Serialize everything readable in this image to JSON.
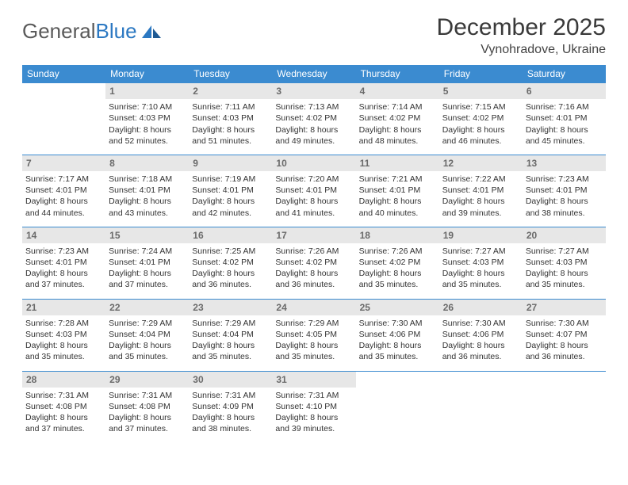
{
  "logo": {
    "textGray": "General",
    "textBlue": "Blue"
  },
  "header": {
    "title": "December 2025",
    "location": "Vynohradove, Ukraine"
  },
  "colors": {
    "headerBlue": "#3b8bd0",
    "dayBg": "#e7e7e7",
    "borderBlue": "#3b8bd0",
    "textGray": "#5a5a5a",
    "logoBlue": "#2b78c2"
  },
  "weekdays": [
    "Sunday",
    "Monday",
    "Tuesday",
    "Wednesday",
    "Thursday",
    "Friday",
    "Saturday"
  ],
  "startOffset": 1,
  "days": [
    {
      "n": "1",
      "sunrise": "Sunrise: 7:10 AM",
      "sunset": "Sunset: 4:03 PM",
      "day1": "Daylight: 8 hours",
      "day2": "and 52 minutes."
    },
    {
      "n": "2",
      "sunrise": "Sunrise: 7:11 AM",
      "sunset": "Sunset: 4:03 PM",
      "day1": "Daylight: 8 hours",
      "day2": "and 51 minutes."
    },
    {
      "n": "3",
      "sunrise": "Sunrise: 7:13 AM",
      "sunset": "Sunset: 4:02 PM",
      "day1": "Daylight: 8 hours",
      "day2": "and 49 minutes."
    },
    {
      "n": "4",
      "sunrise": "Sunrise: 7:14 AM",
      "sunset": "Sunset: 4:02 PM",
      "day1": "Daylight: 8 hours",
      "day2": "and 48 minutes."
    },
    {
      "n": "5",
      "sunrise": "Sunrise: 7:15 AM",
      "sunset": "Sunset: 4:02 PM",
      "day1": "Daylight: 8 hours",
      "day2": "and 46 minutes."
    },
    {
      "n": "6",
      "sunrise": "Sunrise: 7:16 AM",
      "sunset": "Sunset: 4:01 PM",
      "day1": "Daylight: 8 hours",
      "day2": "and 45 minutes."
    },
    {
      "n": "7",
      "sunrise": "Sunrise: 7:17 AM",
      "sunset": "Sunset: 4:01 PM",
      "day1": "Daylight: 8 hours",
      "day2": "and 44 minutes."
    },
    {
      "n": "8",
      "sunrise": "Sunrise: 7:18 AM",
      "sunset": "Sunset: 4:01 PM",
      "day1": "Daylight: 8 hours",
      "day2": "and 43 minutes."
    },
    {
      "n": "9",
      "sunrise": "Sunrise: 7:19 AM",
      "sunset": "Sunset: 4:01 PM",
      "day1": "Daylight: 8 hours",
      "day2": "and 42 minutes."
    },
    {
      "n": "10",
      "sunrise": "Sunrise: 7:20 AM",
      "sunset": "Sunset: 4:01 PM",
      "day1": "Daylight: 8 hours",
      "day2": "and 41 minutes."
    },
    {
      "n": "11",
      "sunrise": "Sunrise: 7:21 AM",
      "sunset": "Sunset: 4:01 PM",
      "day1": "Daylight: 8 hours",
      "day2": "and 40 minutes."
    },
    {
      "n": "12",
      "sunrise": "Sunrise: 7:22 AM",
      "sunset": "Sunset: 4:01 PM",
      "day1": "Daylight: 8 hours",
      "day2": "and 39 minutes."
    },
    {
      "n": "13",
      "sunrise": "Sunrise: 7:23 AM",
      "sunset": "Sunset: 4:01 PM",
      "day1": "Daylight: 8 hours",
      "day2": "and 38 minutes."
    },
    {
      "n": "14",
      "sunrise": "Sunrise: 7:23 AM",
      "sunset": "Sunset: 4:01 PM",
      "day1": "Daylight: 8 hours",
      "day2": "and 37 minutes."
    },
    {
      "n": "15",
      "sunrise": "Sunrise: 7:24 AM",
      "sunset": "Sunset: 4:01 PM",
      "day1": "Daylight: 8 hours",
      "day2": "and 37 minutes."
    },
    {
      "n": "16",
      "sunrise": "Sunrise: 7:25 AM",
      "sunset": "Sunset: 4:02 PM",
      "day1": "Daylight: 8 hours",
      "day2": "and 36 minutes."
    },
    {
      "n": "17",
      "sunrise": "Sunrise: 7:26 AM",
      "sunset": "Sunset: 4:02 PM",
      "day1": "Daylight: 8 hours",
      "day2": "and 36 minutes."
    },
    {
      "n": "18",
      "sunrise": "Sunrise: 7:26 AM",
      "sunset": "Sunset: 4:02 PM",
      "day1": "Daylight: 8 hours",
      "day2": "and 35 minutes."
    },
    {
      "n": "19",
      "sunrise": "Sunrise: 7:27 AM",
      "sunset": "Sunset: 4:03 PM",
      "day1": "Daylight: 8 hours",
      "day2": "and 35 minutes."
    },
    {
      "n": "20",
      "sunrise": "Sunrise: 7:27 AM",
      "sunset": "Sunset: 4:03 PM",
      "day1": "Daylight: 8 hours",
      "day2": "and 35 minutes."
    },
    {
      "n": "21",
      "sunrise": "Sunrise: 7:28 AM",
      "sunset": "Sunset: 4:03 PM",
      "day1": "Daylight: 8 hours",
      "day2": "and 35 minutes."
    },
    {
      "n": "22",
      "sunrise": "Sunrise: 7:29 AM",
      "sunset": "Sunset: 4:04 PM",
      "day1": "Daylight: 8 hours",
      "day2": "and 35 minutes."
    },
    {
      "n": "23",
      "sunrise": "Sunrise: 7:29 AM",
      "sunset": "Sunset: 4:04 PM",
      "day1": "Daylight: 8 hours",
      "day2": "and 35 minutes."
    },
    {
      "n": "24",
      "sunrise": "Sunrise: 7:29 AM",
      "sunset": "Sunset: 4:05 PM",
      "day1": "Daylight: 8 hours",
      "day2": "and 35 minutes."
    },
    {
      "n": "25",
      "sunrise": "Sunrise: 7:30 AM",
      "sunset": "Sunset: 4:06 PM",
      "day1": "Daylight: 8 hours",
      "day2": "and 35 minutes."
    },
    {
      "n": "26",
      "sunrise": "Sunrise: 7:30 AM",
      "sunset": "Sunset: 4:06 PM",
      "day1": "Daylight: 8 hours",
      "day2": "and 36 minutes."
    },
    {
      "n": "27",
      "sunrise": "Sunrise: 7:30 AM",
      "sunset": "Sunset: 4:07 PM",
      "day1": "Daylight: 8 hours",
      "day2": "and 36 minutes."
    },
    {
      "n": "28",
      "sunrise": "Sunrise: 7:31 AM",
      "sunset": "Sunset: 4:08 PM",
      "day1": "Daylight: 8 hours",
      "day2": "and 37 minutes."
    },
    {
      "n": "29",
      "sunrise": "Sunrise: 7:31 AM",
      "sunset": "Sunset: 4:08 PM",
      "day1": "Daylight: 8 hours",
      "day2": "and 37 minutes."
    },
    {
      "n": "30",
      "sunrise": "Sunrise: 7:31 AM",
      "sunset": "Sunset: 4:09 PM",
      "day1": "Daylight: 8 hours",
      "day2": "and 38 minutes."
    },
    {
      "n": "31",
      "sunrise": "Sunrise: 7:31 AM",
      "sunset": "Sunset: 4:10 PM",
      "day1": "Daylight: 8 hours",
      "day2": "and 39 minutes."
    }
  ]
}
